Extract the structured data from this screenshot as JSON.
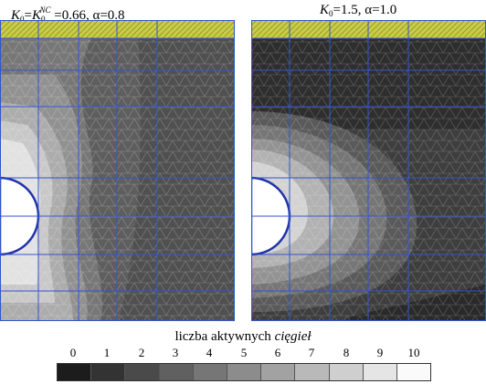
{
  "panels": {
    "left": {
      "k_main": "K",
      "k_sub": "0",
      "eq1": "=",
      "knc_main": "K",
      "knc_sub": "0",
      "knc_sup": "NC",
      "rest": " =0.66, α=0.8"
    },
    "right": {
      "k_main": "K",
      "k_sub": "0",
      "rest": "=1.5, α=1.0"
    }
  },
  "legend": {
    "title_prefix": "liczba aktywnych ",
    "title_italic": "cięgieł",
    "labels": [
      "0",
      "1",
      "2",
      "3",
      "4",
      "5",
      "6",
      "7",
      "8",
      "9",
      "10"
    ],
    "colors": [
      "#1c1c1c",
      "#333333",
      "#4a4a4a",
      "#606060",
      "#767676",
      "#8c8c8c",
      "#a2a2a2",
      "#b9b9b9",
      "#cfcfcf",
      "#e5e5e5",
      "#fafafa"
    ]
  },
  "colors": {
    "mesh_blue": "#3355cc",
    "hatch_yellow": "#c8cc4a",
    "tunnel_edge": "#2233aa"
  }
}
